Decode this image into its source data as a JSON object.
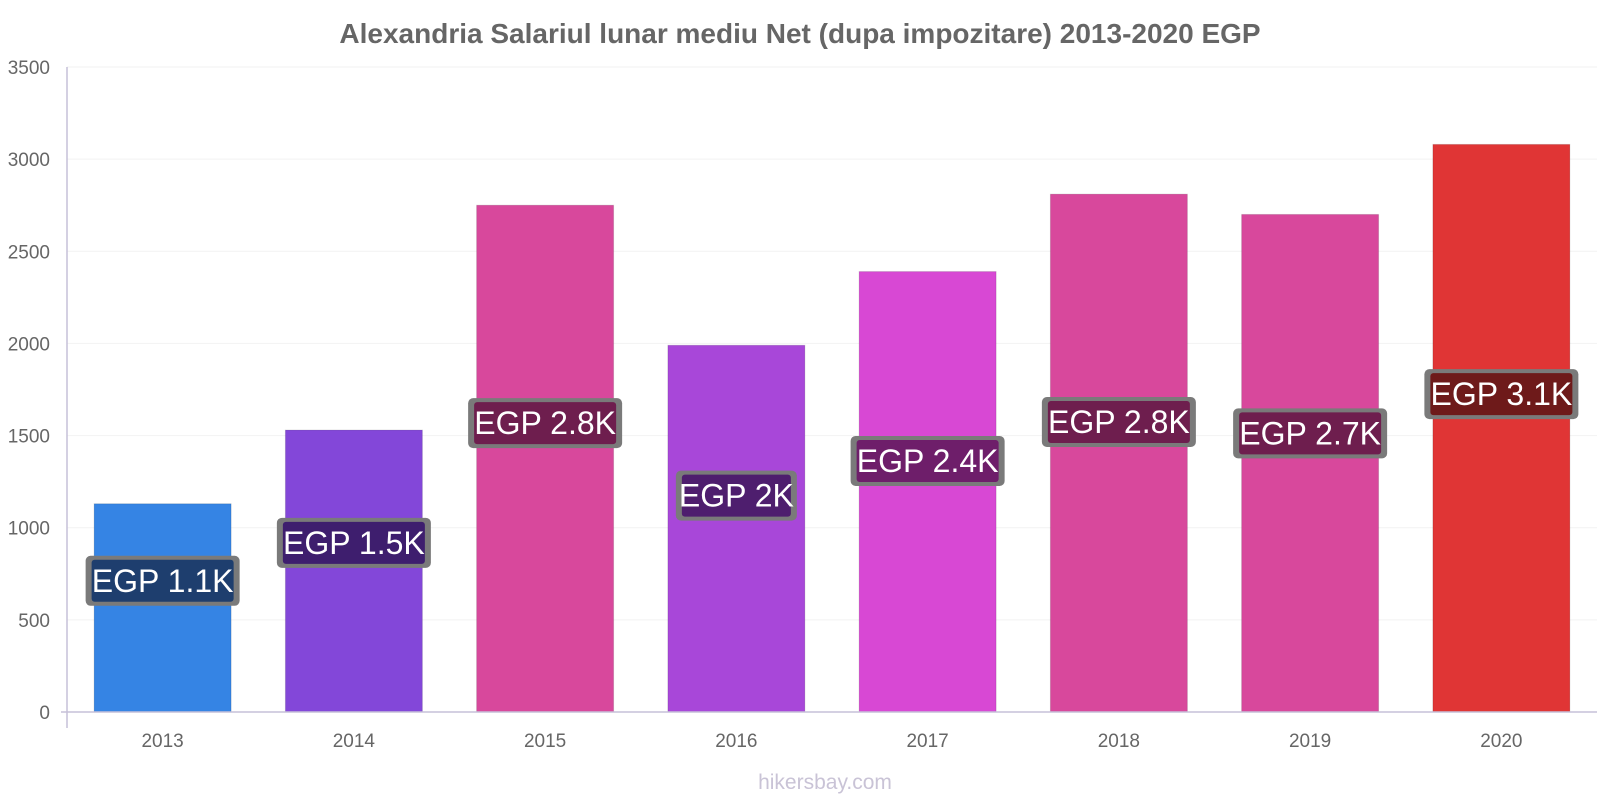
{
  "chart_data": {
    "type": "bar",
    "title": "Alexandria Salariul lunar mediu Net (dupa impozitare) 2013-2020 EGP",
    "xlabel": "",
    "ylabel": "",
    "categories": [
      "2013",
      "2014",
      "2015",
      "2016",
      "2017",
      "2018",
      "2019",
      "2020"
    ],
    "values": [
      1130,
      1530,
      2750,
      1990,
      2390,
      2810,
      2700,
      3080
    ],
    "data_labels": [
      "EGP 1.1K",
      "EGP 1.5K",
      "EGP 2.8K",
      "EGP 2K",
      "EGP 2.4K",
      "EGP 2.8K",
      "EGP 2.7K",
      "EGP 3.1K"
    ],
    "bar_colors": [
      "#3584e4",
      "#8347d9",
      "#d8489c",
      "#a847d9",
      "#d848d4",
      "#d8489c",
      "#d8489c",
      "#e03535"
    ],
    "label_bg_colors": [
      "#1e3e6e",
      "#3e1e6e",
      "#6e1e4e",
      "#4e1e6e",
      "#6e1e6a",
      "#6e1e4e",
      "#6e1e4e",
      "#6e1a1a"
    ],
    "ylim": [
      0,
      3500
    ],
    "yticks": [
      0,
      500,
      1000,
      1500,
      2000,
      2500,
      3000,
      3500
    ],
    "ytick_labels": [
      "0",
      "500",
      "1000",
      "1500",
      "2000",
      "2500",
      "3000",
      "3500"
    ],
    "label_value_fraction": [
      0.63,
      0.6,
      0.57,
      0.59,
      0.57,
      0.56,
      0.56,
      0.56
    ],
    "grid": true,
    "legend": "none"
  },
  "watermark": "hikersbay.com",
  "colors": {
    "axis": "#c6c0d8",
    "grid": "#f2f2f2",
    "text": "#666666"
  }
}
